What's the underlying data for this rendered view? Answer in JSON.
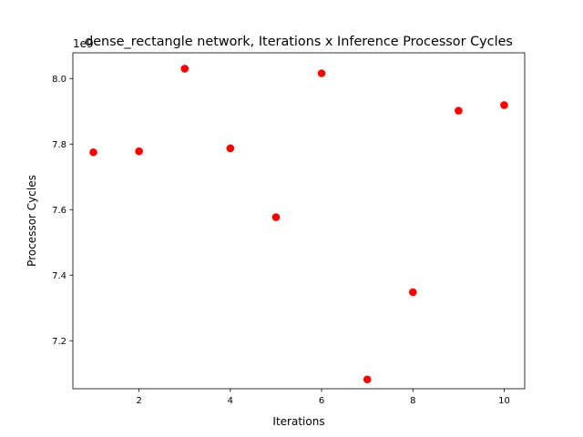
{
  "chart_data": {
    "type": "scatter",
    "title": "dense_rectangle network, Iterations x Inference Processor Cycles",
    "xlabel": "Iterations",
    "ylabel": "Processor Cycles",
    "offset_label": "1e9",
    "xlim": [
      0.55,
      10.45
    ],
    "ylim": [
      7.0535,
      8.0785
    ],
    "xticks": [
      2,
      4,
      6,
      8,
      10
    ],
    "xtick_labels": [
      "2",
      "4",
      "6",
      "8",
      "10"
    ],
    "yticks": [
      7.2,
      7.4,
      7.6,
      7.8,
      8.0
    ],
    "ytick_labels": [
      "7.2",
      "7.4",
      "7.6",
      "7.8",
      "8.0"
    ],
    "grid": false,
    "marker_color": "#ff0000",
    "x": [
      1,
      2,
      3,
      4,
      5,
      6,
      7,
      8,
      9,
      10
    ],
    "y": [
      7.775,
      7.778,
      8.03,
      7.787,
      7.577,
      8.016,
      7.082,
      7.348,
      7.902,
      7.919
    ]
  }
}
